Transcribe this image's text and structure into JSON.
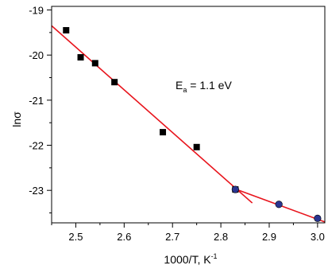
{
  "chart_data": {
    "type": "scatter",
    "xlabel_main": "1000/T, K",
    "xlabel_sup": "-1",
    "ylabel": "lnσ",
    "annotation": {
      "main": "E",
      "sub": "a",
      "rest": " = 1.1 eV"
    },
    "xlim": [
      2.45,
      3.015
    ],
    "ylim": [
      -23.72,
      -18.92
    ],
    "x_ticks": [
      2.5,
      2.6,
      2.7,
      2.8,
      2.9,
      3.0
    ],
    "x_tick_labels": [
      "2.5",
      "2.6",
      "2.7",
      "2.8",
      "2.9",
      "3.0"
    ],
    "y_ticks": [
      -19,
      -20,
      -21,
      -22,
      -23
    ],
    "y_tick_labels": [
      "-19",
      "-20",
      "-21",
      "-22",
      "-23"
    ],
    "grid": false,
    "fit_color": "#e8141c",
    "circle_color": "#2a3590",
    "series": [
      {
        "marker": "square",
        "x": [
          2.48,
          2.51,
          2.54,
          2.58,
          2.68,
          2.75,
          2.83
        ],
        "y": [
          -19.45,
          -20.05,
          -20.18,
          -20.6,
          -21.71,
          -22.04,
          -22.98
        ]
      },
      {
        "marker": "circle",
        "x": [
          2.83,
          2.92,
          3.0
        ],
        "y": [
          -22.98,
          -23.31,
          -23.62
        ]
      }
    ],
    "fit_lines": [
      {
        "x": [
          2.45,
          2.865
        ],
        "y": [
          -19.35,
          -23.28
        ]
      },
      {
        "x": [
          2.83,
          3.015
        ],
        "y": [
          -22.97,
          -23.7
        ]
      }
    ]
  }
}
